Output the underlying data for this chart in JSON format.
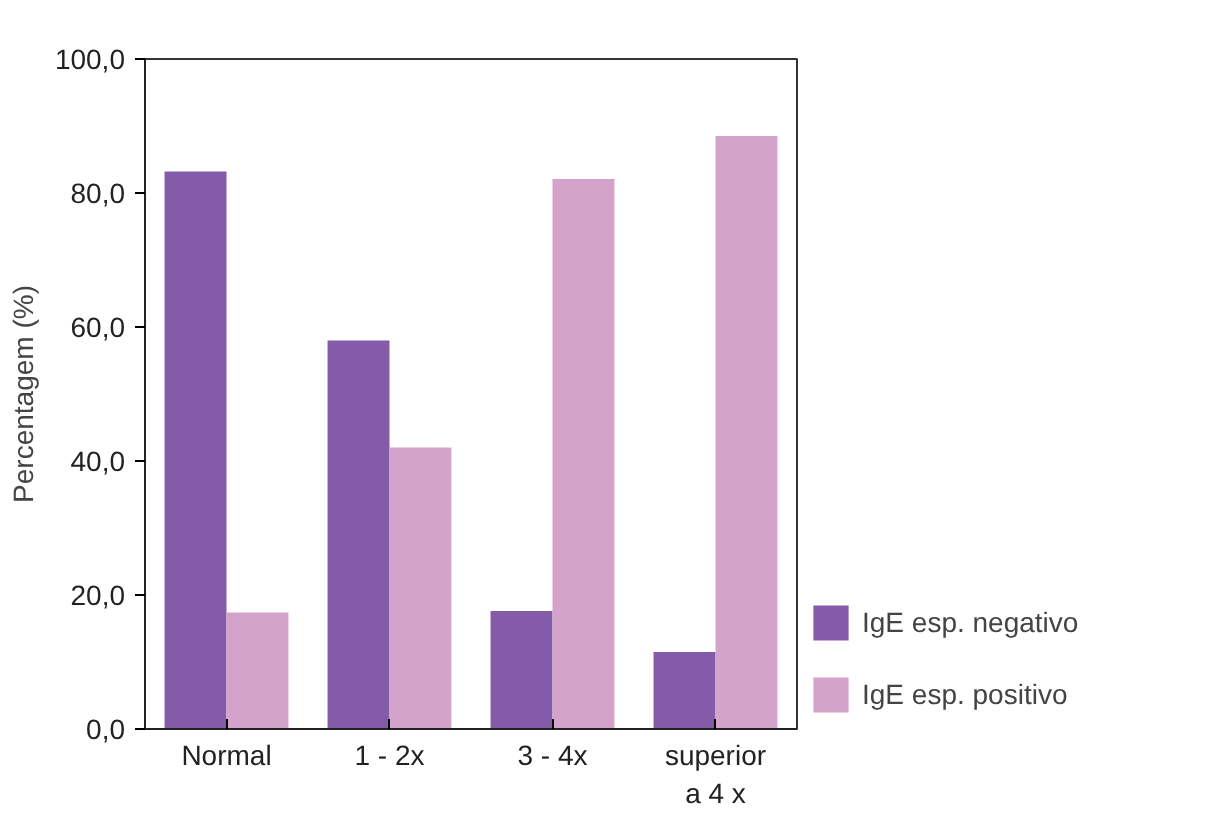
{
  "chart_data": {
    "type": "bar",
    "ylabel": "Percentagem (%)",
    "categories": [
      "Normal",
      "1 - 2x",
      "3 - 4x",
      "superior\na 4 x"
    ],
    "series": [
      {
        "name": "IgE esp. negativo",
        "color": "#845ba8",
        "values": [
          83.2,
          58.0,
          17.6,
          11.5
        ]
      },
      {
        "name": "IgE esp. positivo",
        "color": "#d3a3cb",
        "values": [
          17.4,
          42.0,
          82.1,
          88.5
        ]
      }
    ],
    "ylim": [
      0,
      100
    ],
    "yticks": [
      {
        "value": 0,
        "label": "0,0"
      },
      {
        "value": 20,
        "label": "20,0"
      },
      {
        "value": 40,
        "label": "40,0"
      },
      {
        "value": 60,
        "label": "60,0"
      },
      {
        "value": 80,
        "label": "80,0"
      },
      {
        "value": 100,
        "label": "100,0"
      }
    ],
    "legend": "bottom right"
  }
}
